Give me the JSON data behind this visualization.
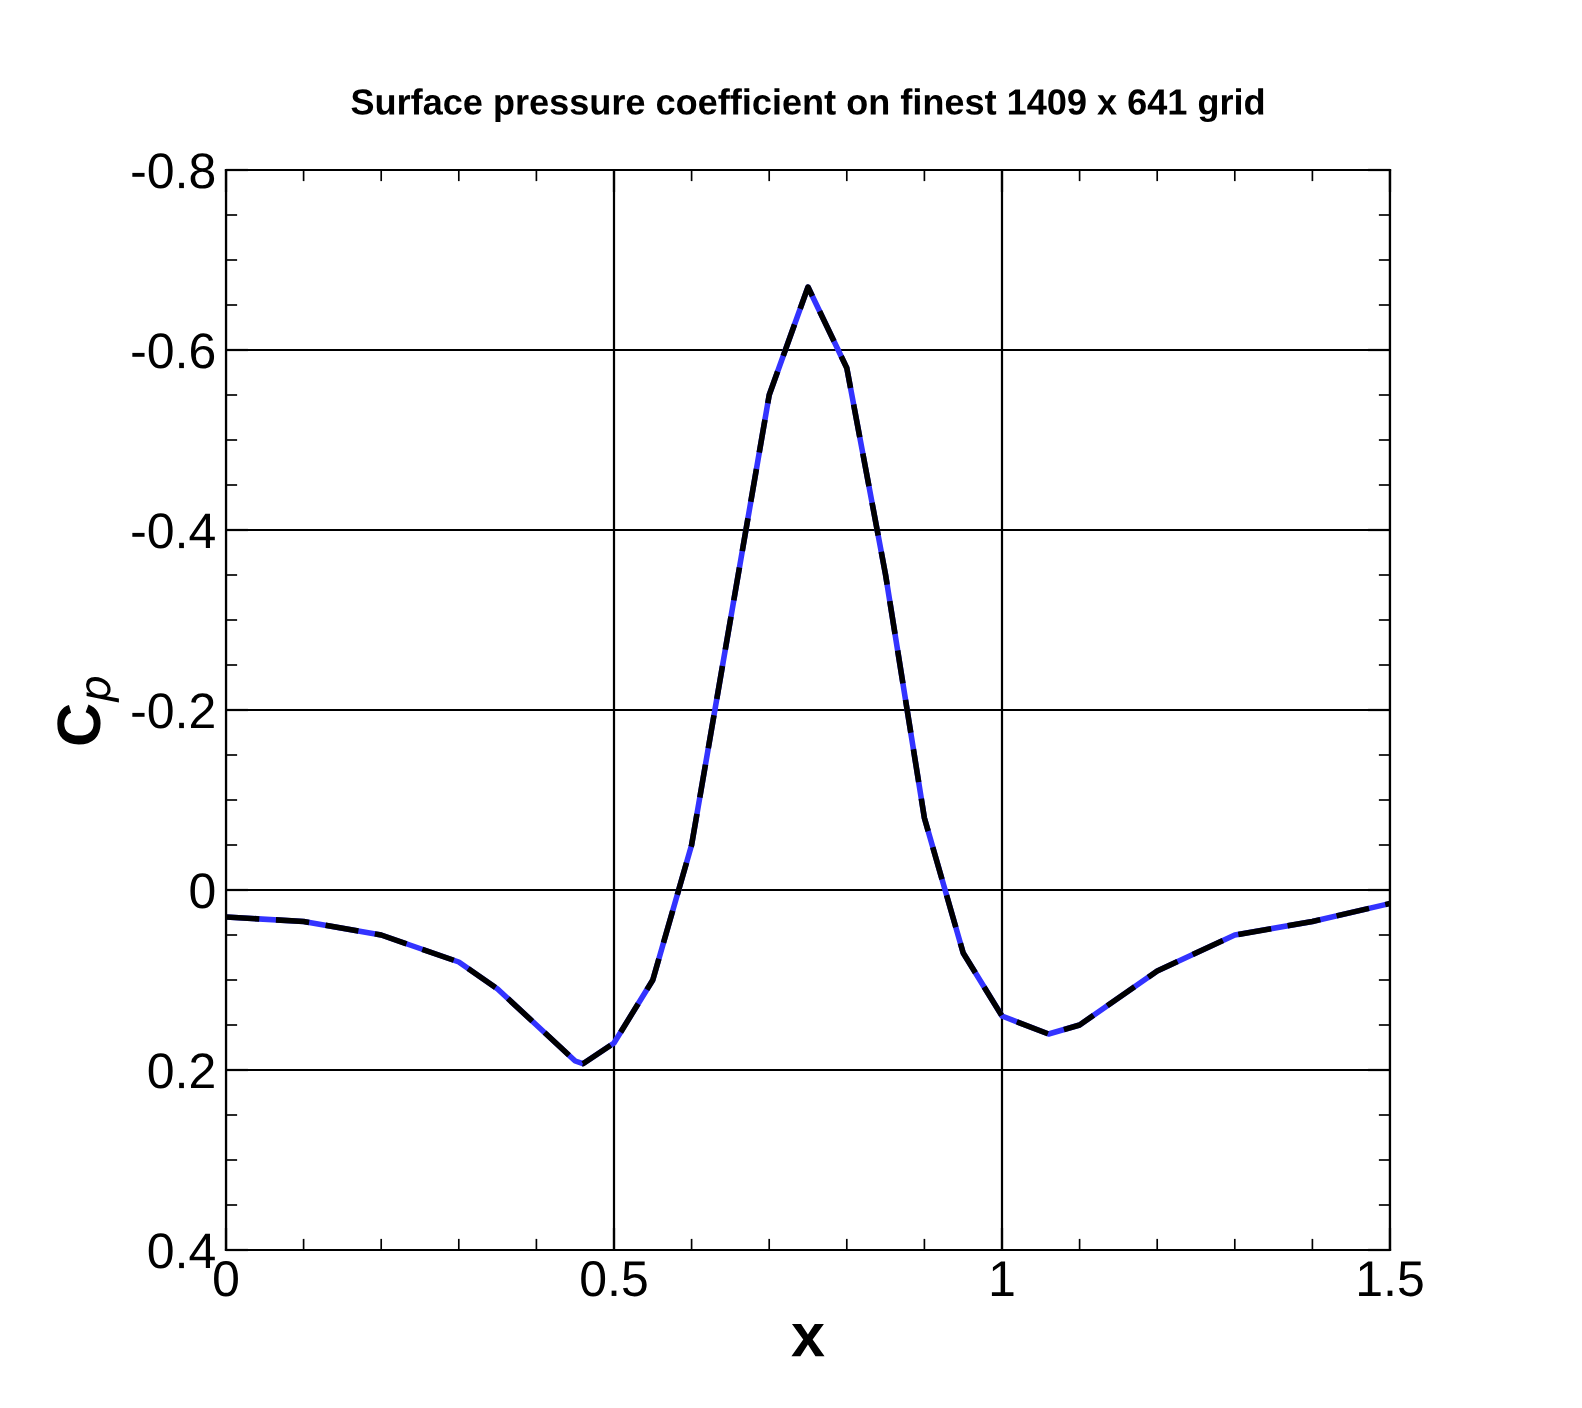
{
  "chart_data": {
    "type": "line",
    "title": "Surface pressure coefficient on finest 1409 x 641 grid",
    "xlabel": "x",
    "ylabel": "C$_{p}$",
    "x": [
      0,
      0.1,
      0.2,
      0.3,
      0.35,
      0.4,
      0.45,
      0.46,
      0.5,
      0.55,
      0.6,
      0.65,
      0.7,
      0.75,
      0.8,
      0.85,
      0.9,
      0.95,
      1.0,
      1.06,
      1.1,
      1.2,
      1.3,
      1.4,
      1.5
    ],
    "series": [
      {
        "color": "#3333ff",
        "line_style": "solid",
        "values": [
          0.03,
          0.035,
          0.05,
          0.08,
          0.11,
          0.15,
          0.19,
          0.193,
          0.17,
          0.1,
          -0.05,
          -0.3,
          -0.55,
          -0.67,
          -0.58,
          -0.35,
          -0.08,
          0.07,
          0.14,
          0.16,
          0.15,
          0.09,
          0.05,
          0.035,
          0.015
        ]
      },
      {
        "color": "#000000",
        "line_style": "dashed",
        "values": [
          0.03,
          0.035,
          0.05,
          0.08,
          0.11,
          0.15,
          0.19,
          0.193,
          0.17,
          0.1,
          -0.05,
          -0.3,
          -0.55,
          -0.67,
          -0.58,
          -0.35,
          -0.08,
          0.07,
          0.14,
          0.16,
          0.15,
          0.09,
          0.05,
          0.035,
          0.015
        ]
      }
    ],
    "xlim": [
      0,
      1.5
    ],
    "xticks": [
      0,
      0.5,
      1,
      1.5
    ],
    "ylim": [
      0.4,
      -0.8
    ],
    "yticks": [
      {
        "value": -0.8,
        "label": "-0.8"
      },
      {
        "value": -0.6,
        "label": "-0.6"
      },
      {
        "value": -0.4,
        "label": "-0.4"
      },
      {
        "value": -0.2,
        "label": "-0.2"
      },
      0,
      0.2,
      0.4
    ],
    "grid": true
  }
}
